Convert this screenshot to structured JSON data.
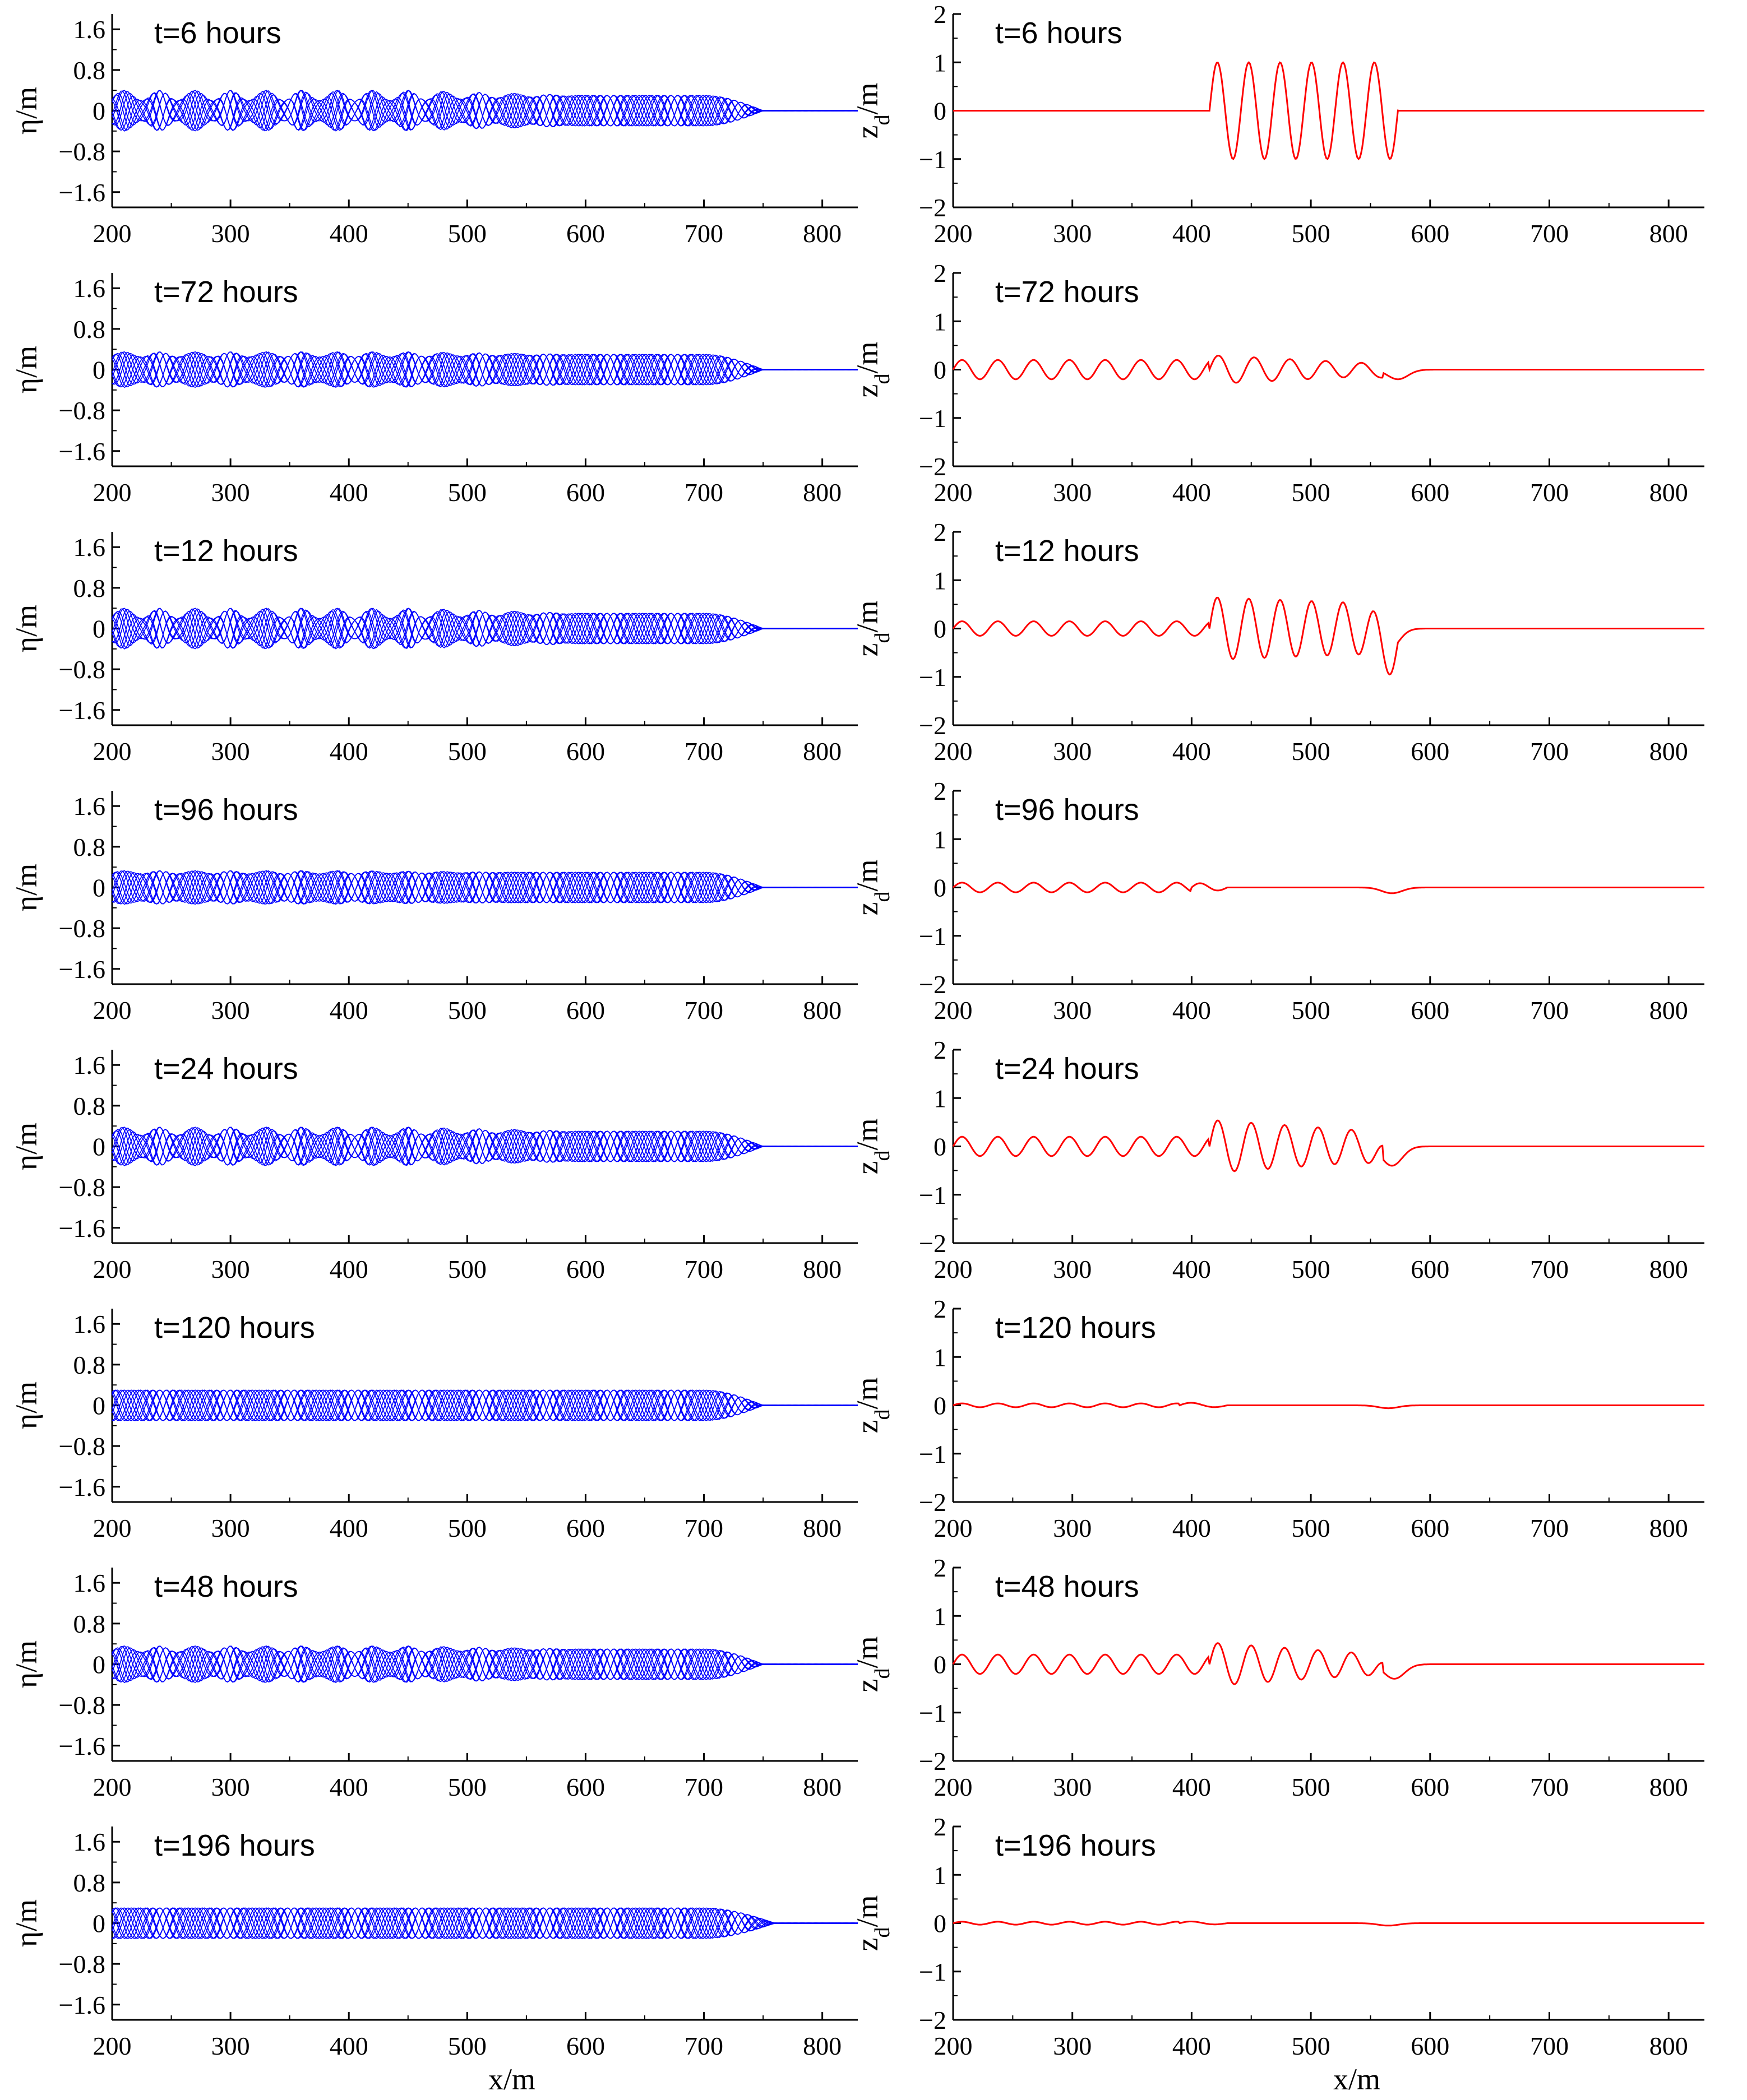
{
  "figure": {
    "x_axis_label": "x/m",
    "eta_axis_label": "η/m",
    "zd_axis_label_main": "z",
    "zd_axis_label_sub": "d",
    "zd_axis_label_tail": "/m",
    "colors": {
      "eta": "#0000ff",
      "zd": "#ff0000",
      "axes": "#000000"
    }
  },
  "chart_data": [
    {
      "id": "eta-t6",
      "type": "line",
      "kind": "eta",
      "title": "t=6 hours",
      "xlim": [
        200,
        830
      ],
      "ylim": [
        -1.9,
        1.9
      ],
      "xticks": [
        200,
        300,
        400,
        500,
        600,
        700,
        800
      ],
      "yticks": [
        -1.6,
        -0.8,
        0,
        0.8,
        1.6
      ],
      "ytick_labels": [
        "−1.6",
        "−0.8",
        "0",
        "0.8",
        "1.6"
      ],
      "envelope": {
        "mean_amplitude": 0.3,
        "modulation_amplitude": 0.1,
        "modulation_period": 30,
        "modulation_fade_x": 450,
        "decay_start": 700,
        "front": 750
      },
      "color": "#0000ff"
    },
    {
      "id": "zd-t6",
      "type": "line",
      "kind": "zd",
      "title": "t=6 hours",
      "xlim": [
        200,
        830
      ],
      "ylim": [
        -2,
        2
      ],
      "xticks": [
        200,
        300,
        400,
        500,
        600,
        700,
        800
      ],
      "yticks": [
        -2,
        -1,
        0,
        1,
        2
      ],
      "ytick_labels": [
        "−2",
        "−1",
        "0",
        "1",
        "2"
      ],
      "profile": {
        "trail_amplitude": 0,
        "trail_wavelength": 30,
        "packet_start": 415,
        "packet_end": 573,
        "packet_amplitude": [
          1.0,
          1.0
        ],
        "packet_wavelength": 26.33,
        "front_dip": 0,
        "dip_x": 573
      },
      "color": "#ff0000"
    },
    {
      "id": "eta-t72",
      "type": "line",
      "kind": "eta",
      "title": "t=72 hours",
      "xlim": [
        200,
        830
      ],
      "ylim": [
        -1.9,
        1.9
      ],
      "xticks": [
        200,
        300,
        400,
        500,
        600,
        700,
        800
      ],
      "yticks": [
        -1.6,
        -0.8,
        0,
        0.8,
        1.6
      ],
      "ytick_labels": [
        "−1.6",
        "−0.8",
        "0",
        "0.8",
        "1.6"
      ],
      "envelope": {
        "mean_amplitude": 0.3,
        "modulation_amplitude": 0.05,
        "modulation_period": 30,
        "modulation_fade_x": 450,
        "decay_start": 700,
        "front": 750
      },
      "color": "#0000ff"
    },
    {
      "id": "zd-t72",
      "type": "line",
      "kind": "zd",
      "title": "t=72 hours",
      "xlim": [
        200,
        830
      ],
      "ylim": [
        -2,
        2
      ],
      "xticks": [
        200,
        300,
        400,
        500,
        600,
        700,
        800
      ],
      "yticks": [
        -2,
        -1,
        0,
        1,
        2
      ],
      "ytick_labels": [
        "−2",
        "−1",
        "0",
        "1",
        "2"
      ],
      "profile": {
        "trail_amplitude": 0.2,
        "trail_wavelength": 30,
        "packet_start": 415,
        "packet_end": 560,
        "packet_amplitude": [
          0.3,
          0.12
        ],
        "packet_wavelength": 30,
        "front_dip": -0.2,
        "dip_x": 573
      },
      "color": "#ff0000"
    },
    {
      "id": "eta-t12",
      "type": "line",
      "kind": "eta",
      "title": "t=12 hours",
      "xlim": [
        200,
        830
      ],
      "ylim": [
        -1.9,
        1.9
      ],
      "xticks": [
        200,
        300,
        400,
        500,
        600,
        700,
        800
      ],
      "yticks": [
        -1.6,
        -0.8,
        0,
        0.8,
        1.6
      ],
      "ytick_labels": [
        "−1.6",
        "−0.8",
        "0",
        "0.8",
        "1.6"
      ],
      "envelope": {
        "mean_amplitude": 0.3,
        "modulation_amplitude": 0.1,
        "modulation_period": 30,
        "modulation_fade_x": 450,
        "decay_start": 700,
        "front": 750
      },
      "color": "#0000ff"
    },
    {
      "id": "zd-t12",
      "type": "line",
      "kind": "zd",
      "title": "t=12 hours",
      "xlim": [
        200,
        830
      ],
      "ylim": [
        -2,
        2
      ],
      "xticks": [
        200,
        300,
        400,
        500,
        600,
        700,
        800
      ],
      "yticks": [
        -2,
        -1,
        0,
        1,
        2
      ],
      "ytick_labels": [
        "−2",
        "−1",
        "0",
        "1",
        "2"
      ],
      "profile": {
        "trail_amplitude": 0.15,
        "trail_wavelength": 30,
        "packet_start": 415,
        "packet_end": 573,
        "packet_amplitude": [
          0.65,
          0.5
        ],
        "packet_wavelength": 26.33,
        "front_dip": -0.45,
        "dip_x": 565
      },
      "color": "#ff0000"
    },
    {
      "id": "eta-t96",
      "type": "line",
      "kind": "eta",
      "title": "t=96 hours",
      "xlim": [
        200,
        830
      ],
      "ylim": [
        -1.9,
        1.9
      ],
      "xticks": [
        200,
        300,
        400,
        500,
        600,
        700,
        800
      ],
      "yticks": [
        -1.6,
        -0.8,
        0,
        0.8,
        1.6
      ],
      "ytick_labels": [
        "−1.6",
        "−0.8",
        "0",
        "0.8",
        "1.6"
      ],
      "envelope": {
        "mean_amplitude": 0.3,
        "modulation_amplitude": 0.03,
        "modulation_period": 30,
        "modulation_fade_x": 400,
        "decay_start": 700,
        "front": 750
      },
      "color": "#0000ff"
    },
    {
      "id": "zd-t96",
      "type": "line",
      "kind": "zd",
      "title": "t=96 hours",
      "xlim": [
        200,
        830
      ],
      "ylim": [
        -2,
        2
      ],
      "xticks": [
        200,
        300,
        400,
        500,
        600,
        700,
        800
      ],
      "yticks": [
        -2,
        -1,
        0,
        1,
        2
      ],
      "ytick_labels": [
        "−2",
        "−1",
        "0",
        "1",
        "2"
      ],
      "profile": {
        "trail_amplitude": 0.1,
        "trail_wavelength": 30,
        "packet_start": 400,
        "packet_end": 430,
        "packet_amplitude": [
          0.1,
          0.05
        ],
        "packet_wavelength": 30,
        "front_dip": -0.12,
        "dip_x": 568
      },
      "color": "#ff0000"
    },
    {
      "id": "eta-t24",
      "type": "line",
      "kind": "eta",
      "title": "t=24 hours",
      "xlim": [
        200,
        830
      ],
      "ylim": [
        -1.9,
        1.9
      ],
      "xticks": [
        200,
        300,
        400,
        500,
        600,
        700,
        800
      ],
      "yticks": [
        -1.6,
        -0.8,
        0,
        0.8,
        1.6
      ],
      "ytick_labels": [
        "−1.6",
        "−0.8",
        "0",
        "0.8",
        "1.6"
      ],
      "envelope": {
        "mean_amplitude": 0.3,
        "modulation_amplitude": 0.08,
        "modulation_period": 30,
        "modulation_fade_x": 450,
        "decay_start": 700,
        "front": 750
      },
      "color": "#0000ff"
    },
    {
      "id": "zd-t24",
      "type": "line",
      "kind": "zd",
      "title": "t=24 hours",
      "xlim": [
        200,
        830
      ],
      "ylim": [
        -2,
        2
      ],
      "xticks": [
        200,
        300,
        400,
        500,
        600,
        700,
        800
      ],
      "yticks": [
        -2,
        -1,
        0,
        1,
        2
      ],
      "ytick_labels": [
        "−2",
        "−1",
        "0",
        "1",
        "2"
      ],
      "profile": {
        "trail_amplitude": 0.2,
        "trail_wavelength": 30,
        "packet_start": 415,
        "packet_end": 560,
        "packet_amplitude": [
          0.55,
          0.3
        ],
        "packet_wavelength": 28,
        "front_dip": -0.4,
        "dip_x": 568
      },
      "color": "#ff0000"
    },
    {
      "id": "eta-t120",
      "type": "line",
      "kind": "eta",
      "title": "t=120 hours",
      "xlim": [
        200,
        830
      ],
      "ylim": [
        -1.9,
        1.9
      ],
      "xticks": [
        200,
        300,
        400,
        500,
        600,
        700,
        800
      ],
      "yticks": [
        -1.6,
        -0.8,
        0,
        0.8,
        1.6
      ],
      "ytick_labels": [
        "−1.6",
        "−0.8",
        "0",
        "0.8",
        "1.6"
      ],
      "envelope": {
        "mean_amplitude": 0.3,
        "modulation_amplitude": 0.0,
        "modulation_period": 30,
        "modulation_fade_x": 400,
        "decay_start": 700,
        "front": 750
      },
      "color": "#0000ff"
    },
    {
      "id": "zd-t120",
      "type": "line",
      "kind": "zd",
      "title": "t=120 hours",
      "xlim": [
        200,
        830
      ],
      "ylim": [
        -2,
        2
      ],
      "xticks": [
        200,
        300,
        400,
        500,
        600,
        700,
        800
      ],
      "yticks": [
        -2,
        -1,
        0,
        1,
        2
      ],
      "ytick_labels": [
        "−2",
        "−1",
        "0",
        "1",
        "2"
      ],
      "profile": {
        "trail_amplitude": 0.04,
        "trail_wavelength": 30,
        "packet_start": 390,
        "packet_end": 430,
        "packet_amplitude": [
          0.06,
          0.03
        ],
        "packet_wavelength": 40,
        "front_dip": -0.06,
        "dip_x": 565
      },
      "color": "#ff0000"
    },
    {
      "id": "eta-t48",
      "type": "line",
      "kind": "eta",
      "title": "t=48 hours",
      "xlim": [
        200,
        830
      ],
      "ylim": [
        -1.9,
        1.9
      ],
      "xticks": [
        200,
        300,
        400,
        500,
        600,
        700,
        800
      ],
      "yticks": [
        -1.6,
        -0.8,
        0,
        0.8,
        1.6
      ],
      "ytick_labels": [
        "−1.6",
        "−0.8",
        "0",
        "0.8",
        "1.6"
      ],
      "envelope": {
        "mean_amplitude": 0.3,
        "modulation_amplitude": 0.06,
        "modulation_period": 30,
        "modulation_fade_x": 450,
        "decay_start": 700,
        "front": 750
      },
      "color": "#0000ff"
    },
    {
      "id": "zd-t48",
      "type": "line",
      "kind": "zd",
      "title": "t=48 hours",
      "xlim": [
        200,
        830
      ],
      "ylim": [
        -2,
        2
      ],
      "xticks": [
        200,
        300,
        400,
        500,
        600,
        700,
        800
      ],
      "yticks": [
        -2,
        -1,
        0,
        1,
        2
      ],
      "ytick_labels": [
        "−2",
        "−1",
        "0",
        "1",
        "2"
      ],
      "profile": {
        "trail_amplitude": 0.2,
        "trail_wavelength": 30,
        "packet_start": 415,
        "packet_end": 560,
        "packet_amplitude": [
          0.45,
          0.2
        ],
        "packet_wavelength": 28,
        "front_dip": -0.3,
        "dip_x": 570
      },
      "color": "#ff0000"
    },
    {
      "id": "eta-t196",
      "type": "line",
      "kind": "eta",
      "title": "t=196 hours",
      "xlim": [
        200,
        830
      ],
      "ylim": [
        -1.9,
        1.9
      ],
      "xticks": [
        200,
        300,
        400,
        500,
        600,
        700,
        800
      ],
      "yticks": [
        -1.6,
        -0.8,
        0,
        0.8,
        1.6
      ],
      "ytick_labels": [
        "−1.6",
        "−0.8",
        "0",
        "0.8",
        "1.6"
      ],
      "envelope": {
        "mean_amplitude": 0.3,
        "modulation_amplitude": 0.0,
        "modulation_period": 30,
        "modulation_fade_x": 400,
        "decay_start": 700,
        "front": 760
      },
      "color": "#0000ff"
    },
    {
      "id": "zd-t196",
      "type": "line",
      "kind": "zd",
      "title": "t=196 hours",
      "xlim": [
        200,
        830
      ],
      "ylim": [
        -2,
        2
      ],
      "xticks": [
        200,
        300,
        400,
        500,
        600,
        700,
        800
      ],
      "yticks": [
        -2,
        -1,
        0,
        1,
        2
      ],
      "ytick_labels": [
        "−2",
        "−1",
        "0",
        "1",
        "2"
      ],
      "profile": {
        "trail_amplitude": 0.03,
        "trail_wavelength": 30,
        "packet_start": 390,
        "packet_end": 430,
        "packet_amplitude": [
          0.04,
          0.02
        ],
        "packet_wavelength": 40,
        "front_dip": -0.05,
        "dip_x": 565
      },
      "color": "#ff0000"
    }
  ]
}
